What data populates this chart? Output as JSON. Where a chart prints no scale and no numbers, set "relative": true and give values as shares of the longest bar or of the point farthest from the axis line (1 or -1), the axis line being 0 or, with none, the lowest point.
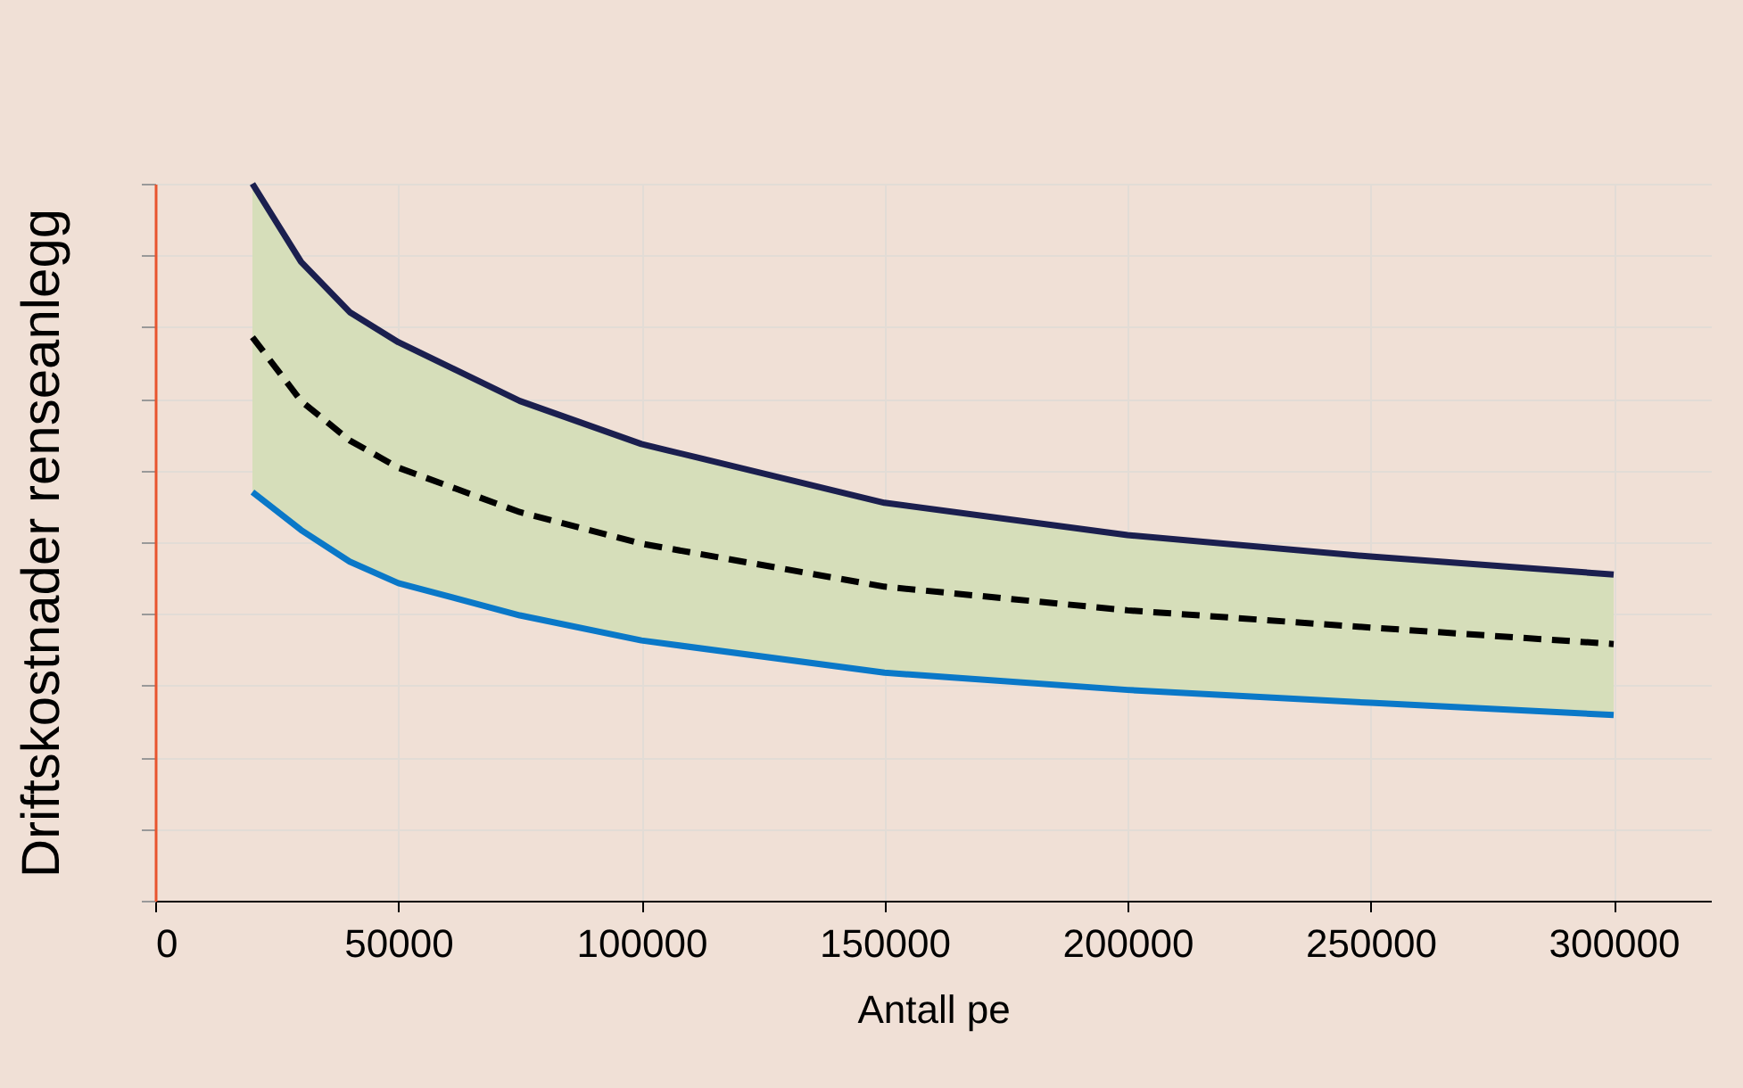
{
  "chart_data": {
    "type": "line",
    "xlabel": "Antall pe",
    "ylabel": "Driftskostnader renseanlegg",
    "relative": true,
    "grid": true,
    "x": [
      20000,
      30000,
      40000,
      50000,
      75000,
      100000,
      150000,
      200000,
      250000,
      300000
    ],
    "xlim": [
      0,
      320000
    ],
    "xticks": [
      0,
      50000,
      100000,
      150000,
      200000,
      250000,
      300000
    ],
    "series": [
      {
        "color": "#1b1f4f",
        "values": [
          1,
          0.891,
          0.821,
          0.779,
          0.697,
          0.637,
          0.555,
          0.51,
          0.48,
          0.455
        ]
      },
      {
        "color": "#000000",
        "line_style": "dashed",
        "values": [
          0.786,
          0.697,
          0.642,
          0.604,
          0.542,
          0.498,
          0.438,
          0.405,
          0.381,
          0.358
        ],
        "lower": [
          0.57,
          0.517,
          0.473,
          0.443,
          0.398,
          0.363,
          0.318,
          0.294,
          0.276,
          0.259
        ],
        "upper": [
          1,
          0.891,
          0.821,
          0.779,
          0.697,
          0.637,
          0.555,
          0.51,
          0.48,
          0.455
        ]
      },
      {
        "color": "#0a78c8",
        "values": [
          0.57,
          0.517,
          0.473,
          0.443,
          0.398,
          0.363,
          0.318,
          0.294,
          0.276,
          0.259
        ]
      }
    ]
  }
}
